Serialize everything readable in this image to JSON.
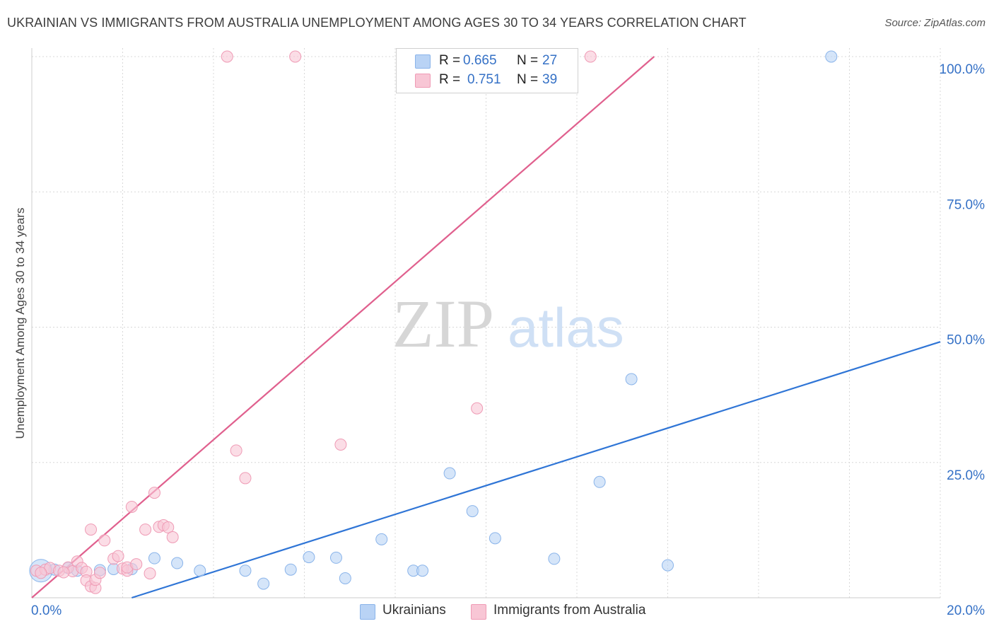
{
  "title": "UKRAINIAN VS IMMIGRANTS FROM AUSTRALIA UNEMPLOYMENT AMONG AGES 30 TO 34 YEARS CORRELATION CHART",
  "source": "Source: ZipAtlas.com",
  "watermark": {
    "part1": "ZIP",
    "part2": "atlas"
  },
  "colors": {
    "blue_fill": "#b9d3f5",
    "blue_stroke": "#8ab4ea",
    "blue_line": "#2f75d6",
    "pink_fill": "#f8c6d5",
    "pink_stroke": "#ef9bb5",
    "pink_line": "#e0608e",
    "tick_label": "#3571c6",
    "grid": "#d8d8d8"
  },
  "legend": {
    "series1": {
      "r_label": "R =",
      "r_value": "0.665",
      "n_label": "N =",
      "n_value": "27"
    },
    "series2": {
      "r_label": "R =",
      "r_value": "0.751",
      "n_label": "N =",
      "n_value": "39"
    }
  },
  "bottom_legend": {
    "series1": "Ukrainians",
    "series2": "Immigrants from Australia"
  },
  "chart_data": {
    "type": "scatter",
    "title": "UKRAINIAN VS IMMIGRANTS FROM AUSTRALIA UNEMPLOYMENT AMONG AGES 30 TO 34 YEARS CORRELATION CHART",
    "xlabel": "",
    "ylabel": "Unemployment Among Ages 30 to 34 years",
    "xlim": [
      0,
      20
    ],
    "ylim": [
      0,
      100
    ],
    "x_ticks": [
      {
        "value": 0,
        "label": "0.0%"
      },
      {
        "value": 20,
        "label": "20.0%"
      }
    ],
    "y_ticks": [
      {
        "value": 25,
        "label": "25.0%"
      },
      {
        "value": 50,
        "label": "50.0%"
      },
      {
        "value": 75,
        "label": "75.0%"
      },
      {
        "value": 100,
        "label": "100.0%"
      }
    ],
    "grid": true,
    "series": [
      {
        "name": "Ukrainians",
        "color": "#b9d3f5",
        "points": [
          [
            0.2,
            5.0
          ],
          [
            0.5,
            5.2
          ],
          [
            0.8,
            5.5
          ],
          [
            1.0,
            5.0
          ],
          [
            1.5,
            5.1
          ],
          [
            1.8,
            5.3
          ],
          [
            2.2,
            5.3
          ],
          [
            2.7,
            7.3
          ],
          [
            3.2,
            6.4
          ],
          [
            3.7,
            5.0
          ],
          [
            4.7,
            5.0
          ],
          [
            5.1,
            2.6
          ],
          [
            5.7,
            5.2
          ],
          [
            6.1,
            7.5
          ],
          [
            6.7,
            7.4
          ],
          [
            6.9,
            3.6
          ],
          [
            7.7,
            10.8
          ],
          [
            8.4,
            5.0
          ],
          [
            8.6,
            5.0
          ],
          [
            9.2,
            23.0
          ],
          [
            9.7,
            16.0
          ],
          [
            10.2,
            11.0
          ],
          [
            11.5,
            7.2
          ],
          [
            12.5,
            21.4
          ],
          [
            13.2,
            40.4
          ],
          [
            14.0,
            6.0
          ],
          [
            17.6,
            100.0
          ]
        ],
        "trendline": {
          "x": [
            2.2,
            20.0
          ],
          "y": [
            0.0,
            47.3
          ]
        }
      },
      {
        "name": "Immigrants from Australia",
        "color": "#f8c6d5",
        "points": [
          [
            0.1,
            5.0
          ],
          [
            0.3,
            5.2
          ],
          [
            0.4,
            5.5
          ],
          [
            0.6,
            5.0
          ],
          [
            0.8,
            5.6
          ],
          [
            0.9,
            4.9
          ],
          [
            1.0,
            6.7
          ],
          [
            1.1,
            5.5
          ],
          [
            1.2,
            4.8
          ],
          [
            1.2,
            3.2
          ],
          [
            1.3,
            2.1
          ],
          [
            1.4,
            1.8
          ],
          [
            1.4,
            3.3
          ],
          [
            1.5,
            4.6
          ],
          [
            1.3,
            12.6
          ],
          [
            1.6,
            10.6
          ],
          [
            1.8,
            7.2
          ],
          [
            1.9,
            7.7
          ],
          [
            2.0,
            5.4
          ],
          [
            2.1,
            5.0
          ],
          [
            2.1,
            5.6
          ],
          [
            2.2,
            16.8
          ],
          [
            2.3,
            6.2
          ],
          [
            2.5,
            12.6
          ],
          [
            2.6,
            4.5
          ],
          [
            2.7,
            19.4
          ],
          [
            2.8,
            13.1
          ],
          [
            2.9,
            13.4
          ],
          [
            3.0,
            13.0
          ],
          [
            3.1,
            11.2
          ],
          [
            4.3,
            100.0
          ],
          [
            4.5,
            27.2
          ],
          [
            4.7,
            22.1
          ],
          [
            5.8,
            100.0
          ],
          [
            6.8,
            28.3
          ],
          [
            9.8,
            35.0
          ],
          [
            12.3,
            100.0
          ],
          [
            0.2,
            4.6
          ],
          [
            0.7,
            4.7
          ]
        ],
        "trendline": {
          "x": [
            0.0,
            13.7
          ],
          "y": [
            0.0,
            100.0
          ]
        }
      }
    ]
  }
}
